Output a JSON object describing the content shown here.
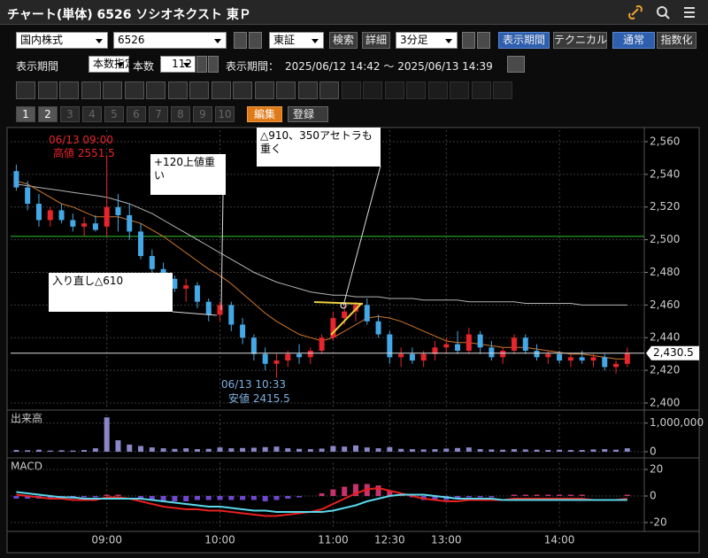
{
  "window": {
    "title": "チャート(単体) 6526 ソシオネクスト 東Ｐ"
  },
  "toolbar": {
    "market": "国内株式",
    "code": "6526",
    "exchange": "東証",
    "search": "検索",
    "detail": "詳細",
    "interval": "3分足",
    "period_button": "表示期間",
    "technical": "テクニカル",
    "normal": "通常",
    "index": "指数化"
  },
  "period": {
    "label": "表示期間",
    "mode": "本数指定",
    "count_label": "本数",
    "count": 112,
    "range_label": "表示期間：",
    "range": "2025/06/12 14:42 ～ 2025/06/13 14:39"
  },
  "tabs": [
    "1",
    "2",
    "3",
    "4",
    "5",
    "6",
    "7",
    "8",
    "9",
    "10"
  ],
  "edit": "編集",
  "register": "登録",
  "chart_data": [
    {
      "type": "candlestick",
      "up_color": "#e8242c",
      "down_color": "#45a8e6",
      "xlim": [
        -0.5,
        55.5
      ],
      "ylim": [
        2397,
        2567
      ],
      "yticks": [
        {
          "value": 2400,
          "label": "2,400"
        },
        {
          "value": 2420,
          "label": "2,420"
        },
        {
          "value": 2440,
          "label": "2,440"
        },
        {
          "value": 2460,
          "label": "2,460"
        },
        {
          "value": 2480,
          "label": "2,480"
        },
        {
          "value": 2500,
          "label": "2,500"
        },
        {
          "value": 2520,
          "label": "2,520"
        },
        {
          "value": 2540,
          "label": "2,540"
        },
        {
          "value": 2560,
          "label": "2,560"
        }
      ],
      "candles": [
        [
          2542,
          2546,
          2530,
          2532
        ],
        [
          2532,
          2536,
          2518,
          2522
        ],
        [
          2522,
          2528,
          2508,
          2512
        ],
        [
          2512,
          2520,
          2508,
          2518
        ],
        [
          2518,
          2522,
          2510,
          2512
        ],
        [
          2512,
          2516,
          2505,
          2508
        ],
        [
          2508,
          2514,
          2502,
          2510
        ],
        [
          2510,
          2515,
          2505,
          2506
        ],
        [
          2508,
          2551.5,
          2502,
          2520
        ],
        [
          2520,
          2528,
          2505,
          2515
        ],
        [
          2515,
          2522,
          2500,
          2505
        ],
        [
          2505,
          2510,
          2488,
          2490
        ],
        [
          2490,
          2494,
          2478,
          2482
        ],
        [
          2482,
          2486,
          2472,
          2476
        ],
        [
          2476,
          2478,
          2468,
          2470
        ],
        [
          2470,
          2476,
          2462,
          2472
        ],
        [
          2472,
          2474,
          2458,
          2462
        ],
        [
          2462,
          2464,
          2450,
          2454
        ],
        [
          2454,
          2462,
          2450,
          2460
        ],
        [
          2460,
          2462,
          2444,
          2448
        ],
        [
          2448,
          2452,
          2436,
          2440
        ],
        [
          2440,
          2442,
          2426,
          2430
        ],
        [
          2430,
          2434,
          2420,
          2424
        ],
        [
          2424,
          2430,
          2415.5,
          2426
        ],
        [
          2426,
          2432,
          2422,
          2430
        ],
        [
          2430,
          2436,
          2424,
          2428
        ],
        [
          2428,
          2434,
          2424,
          2432
        ],
        [
          2432,
          2442,
          2430,
          2440
        ],
        [
          2440,
          2456,
          2438,
          2452
        ],
        [
          2452,
          2460,
          2448,
          2456
        ],
        [
          2456,
          2462,
          2450,
          2460
        ],
        [
          2460,
          2464,
          2448,
          2450
        ],
        [
          2450,
          2454,
          2440,
          2442
        ],
        [
          2442,
          2444,
          2424,
          2428
        ],
        [
          2428,
          2434,
          2422,
          2430
        ],
        [
          2430,
          2434,
          2424,
          2426
        ],
        [
          2426,
          2432,
          2422,
          2430
        ],
        [
          2430,
          2438,
          2426,
          2434
        ],
        [
          2434,
          2440,
          2430,
          2436
        ],
        [
          2436,
          2444,
          2430,
          2432
        ],
        [
          2432,
          2446,
          2430,
          2442
        ],
        [
          2442,
          2444,
          2430,
          2434
        ],
        [
          2434,
          2438,
          2426,
          2428
        ],
        [
          2428,
          2434,
          2424,
          2432
        ],
        [
          2432,
          2442,
          2430,
          2440
        ],
        [
          2440,
          2442,
          2430,
          2432
        ],
        [
          2432,
          2436,
          2426,
          2428
        ],
        [
          2428,
          2432,
          2424,
          2430
        ],
        [
          2430,
          2432,
          2424,
          2426
        ],
        [
          2426,
          2430,
          2422,
          2428
        ],
        [
          2428,
          2432,
          2424,
          2426
        ],
        [
          2426,
          2430,
          2422,
          2428
        ],
        [
          2428,
          2430,
          2420,
          2422
        ],
        [
          2422,
          2426,
          2418,
          2424
        ],
        [
          2424,
          2434,
          2422,
          2430.5
        ]
      ],
      "lines": [
        {
          "color": "#b4b4b4",
          "values": [
            2534,
            2533,
            2532,
            2531,
            2530,
            2529,
            2528,
            2527,
            2526,
            2524,
            2522,
            2519,
            2516,
            2512,
            2508,
            2504,
            2500,
            2496,
            2492,
            2488,
            2484,
            2480,
            2477,
            2474,
            2472,
            2470,
            2468,
            2467,
            2466,
            2466,
            2465,
            2465,
            2465,
            2464,
            2464,
            2464,
            2463,
            2463,
            2463,
            2463,
            2462,
            2462,
            2462,
            2462,
            2462,
            2461,
            2461,
            2461,
            2461,
            2461,
            2460,
            2460,
            2460,
            2460,
            2460
          ]
        },
        {
          "color": "#d2782a",
          "values": [
            2536,
            2534,
            2530,
            2526,
            2522,
            2520,
            2517,
            2514,
            2514,
            2514,
            2512,
            2510,
            2506,
            2502,
            2497,
            2492,
            2487,
            2482,
            2478,
            2473,
            2467,
            2461,
            2455,
            2450,
            2446,
            2442,
            2440,
            2438,
            2440,
            2444,
            2448,
            2452,
            2453,
            2452,
            2450,
            2447,
            2444,
            2441,
            2438,
            2437,
            2437,
            2436,
            2435,
            2434,
            2434,
            2434,
            2433,
            2432,
            2431,
            2430,
            2430,
            2429,
            2428,
            2427,
            2427
          ]
        }
      ],
      "reference_line": {
        "value": 2502,
        "color": "#2fc12f"
      },
      "last_price": {
        "value": 2430.5,
        "label": "2,430.5"
      },
      "annotations": [
        "06/13 09:00",
        "高値 2551.5",
        "+120上値重い",
        "△910、350アセトラも重く",
        "入り直し△610",
        "06/13 10:33",
        "安値 2415.5"
      ]
    },
    {
      "type": "bar",
      "title": "出来高",
      "color": "#8a86c8",
      "xlim": [
        -0.5,
        55.5
      ],
      "ylim": [
        0,
        1300000
      ],
      "yticks": [
        0,
        {
          "value": 1000000,
          "label": "1,000,000"
        }
      ],
      "values": [
        60000,
        50000,
        70000,
        40000,
        50000,
        40000,
        60000,
        120000,
        1200000,
        400000,
        250000,
        200000,
        150000,
        120000,
        100000,
        120000,
        90000,
        100000,
        150000,
        120000,
        130000,
        140000,
        160000,
        180000,
        120000,
        100000,
        90000,
        110000,
        200000,
        180000,
        220000,
        150000,
        120000,
        160000,
        100000,
        90000,
        80000,
        90000,
        110000,
        130000,
        150000,
        90000,
        80000,
        70000,
        90000,
        80000,
        70000,
        60000,
        70000,
        60000,
        60000,
        80000,
        90000,
        70000,
        120000
      ]
    },
    {
      "type": "macd",
      "title": "MACD",
      "xlim": [
        -0.5,
        55.5
      ],
      "ylim": [
        -25,
        25
      ],
      "yticks": [
        -20,
        0,
        20
      ],
      "xticks": [
        {
          "value": 8,
          "label": "09:00"
        },
        {
          "value": 18,
          "label": "10:00"
        },
        {
          "value": 28,
          "label": "11:00"
        },
        {
          "value": 33,
          "label": "12:30"
        },
        {
          "value": 38,
          "label": "13:00"
        },
        {
          "value": 48,
          "label": "14:00"
        }
      ],
      "histogram": {
        "pos_color": "#c8306e",
        "neg_color": "#7048d0",
        "values": [
          -2,
          -2,
          -2,
          -2,
          -1,
          -2,
          -1,
          -1,
          1,
          1,
          0,
          -2,
          -3,
          -4,
          -4,
          -4,
          -3,
          -3,
          -3,
          -3,
          -3,
          -3,
          -4,
          -3,
          -2,
          -1,
          0,
          2,
          5,
          7,
          9,
          9,
          8,
          4,
          1,
          -1,
          -3,
          -3,
          -3,
          -2,
          -1,
          -1,
          -1,
          0,
          1,
          1,
          1,
          1,
          1,
          1,
          1,
          0,
          0,
          0,
          1
        ]
      },
      "series": [
        {
          "color": "#e8201e",
          "values": [
            1,
            0,
            -1,
            -2,
            -2,
            -3,
            -3,
            -3,
            -1,
            -1,
            -2,
            -4,
            -6,
            -8,
            -9,
            -10,
            -10,
            -11,
            -11,
            -12,
            -13,
            -14,
            -15,
            -15,
            -14,
            -13,
            -12,
            -10,
            -6,
            -2,
            2,
            5,
            6,
            4,
            2,
            0,
            -2,
            -3,
            -4,
            -4,
            -3,
            -3,
            -3,
            -3,
            -2,
            -2,
            -2,
            -2,
            -2,
            -2,
            -2,
            -3,
            -3,
            -3,
            -2
          ]
        },
        {
          "color": "#5ad8ea",
          "values": [
            3,
            2,
            1,
            0,
            -1,
            -1,
            -2,
            -2,
            -2,
            -2,
            -2,
            -2,
            -3,
            -4,
            -5,
            -6,
            -7,
            -8,
            -8,
            -9,
            -10,
            -11,
            -11,
            -12,
            -12,
            -12,
            -12,
            -12,
            -11,
            -9,
            -7,
            -4,
            -2,
            0,
            1,
            1,
            1,
            0,
            -1,
            -2,
            -2,
            -2,
            -2,
            -3,
            -3,
            -3,
            -3,
            -3,
            -3,
            -3,
            -3,
            -3,
            -3,
            -3,
            -3
          ]
        }
      ]
    }
  ]
}
